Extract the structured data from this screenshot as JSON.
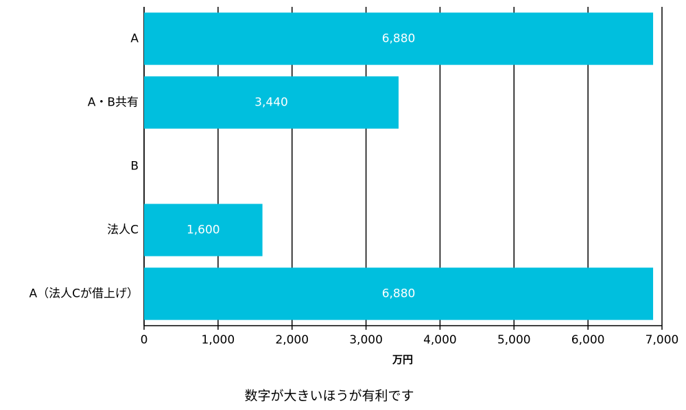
{
  "chart_data": {
    "type": "hbar",
    "categories": [
      "A",
      "A・B共有",
      "B",
      "法人C",
      "A（法人Cが借上げ）"
    ],
    "values": [
      6880,
      3440,
      0,
      1600,
      6880
    ],
    "value_labels": [
      "6,880",
      "3,440",
      null,
      "1,600",
      "6,880"
    ],
    "color": "#00bfde",
    "xlim": [
      0,
      7000
    ],
    "xticks": [
      0,
      {
        "value": 1000,
        "label": "1,000"
      },
      {
        "value": 2000,
        "label": "2,000"
      },
      {
        "value": 3000,
        "label": "3,000"
      },
      {
        "value": 4000,
        "label": "4,000"
      },
      {
        "value": 5000,
        "label": "5,000"
      },
      {
        "value": 6000,
        "label": "6,000"
      },
      {
        "value": 7000,
        "label": "7,000"
      }
    ],
    "x_label": "万円",
    "footnote": "数字が大きいほうが有利です",
    "grid": true
  }
}
